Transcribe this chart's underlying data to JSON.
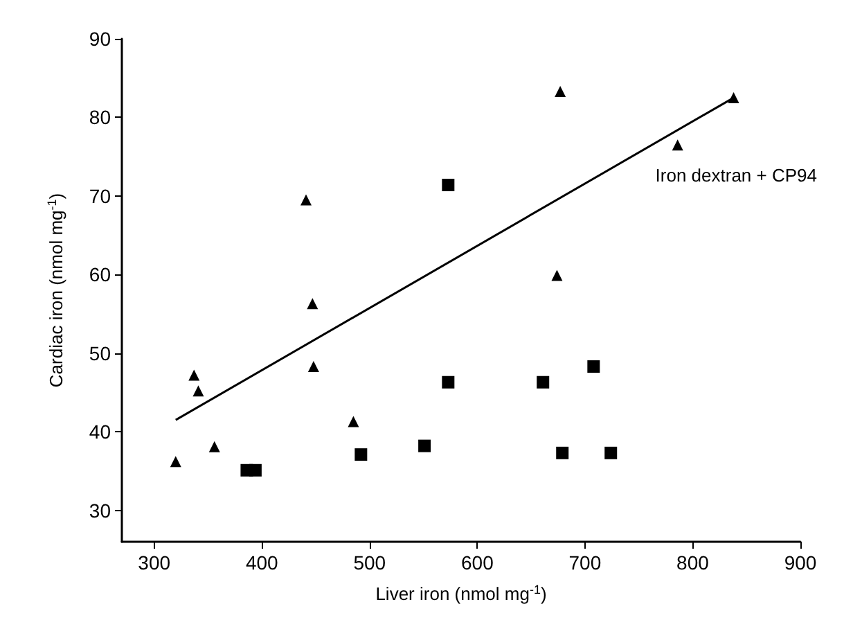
{
  "chart_data": {
    "type": "scatter",
    "xlabel": "Liver iron (nmol mg$^{-1}$)",
    "ylabel": "Cardiac iron (nmol mg$^{-1}$)",
    "xlim": [
      270,
      900
    ],
    "xticks": [
      300,
      400,
      500,
      600,
      700,
      800,
      900
    ],
    "ylim": [
      26,
      90
    ],
    "yticks": [
      30,
      40,
      50,
      60,
      70,
      80,
      90
    ],
    "grid": false,
    "annotations": [
      "Iron dextran + CP94"
    ],
    "series": [
      {
        "marker": "triangle",
        "color": "#000000",
        "x": [
          320,
          337,
          341,
          356,
          441,
          447,
          448,
          485,
          674,
          677,
          786,
          838
        ],
        "values": [
          36.2,
          47.2,
          45.2,
          38.1,
          69.5,
          56.3,
          48.3,
          41.3,
          59.9,
          83.3,
          76.5,
          82.5
        ]
      },
      {
        "marker": "square",
        "color": "#000000",
        "x": [
          386,
          394,
          492,
          551,
          573,
          573,
          661,
          679,
          708,
          724
        ],
        "values": [
          35.1,
          35.1,
          37.1,
          38.2,
          46.3,
          71.4,
          46.3,
          37.3,
          48.3,
          37.3
        ]
      },
      {
        "type": "line",
        "marker": "none",
        "line_style": "solid",
        "color": "#000000",
        "x": [
          320,
          838
        ],
        "values": [
          41.5,
          82.5
        ]
      }
    ]
  }
}
